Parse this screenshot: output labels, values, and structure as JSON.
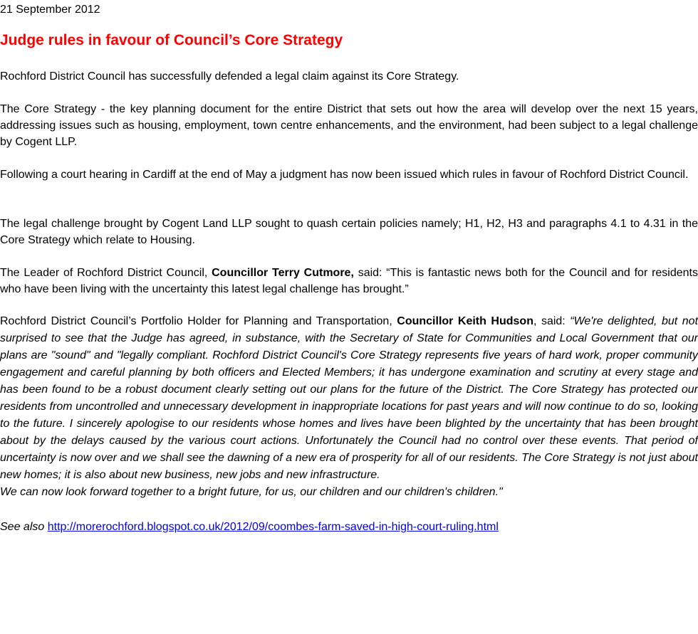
{
  "article": {
    "date": "21 September 2012",
    "headline": "Judge rules in favour of Council’s Core Strategy",
    "p1": "Rochford District Council has successfully defended a legal claim against its Core Strategy.",
    "p2": "The Core Strategy - the key planning document for the entire District that sets out how the area will develop over the next 15 years, addressing issues such as housing, employment, town centre enhancements, and the environment, had been subject to a legal challenge by Cogent LLP.",
    "p3": "Following a court hearing in Cardiff at the end of May a judgment has now been issued which rules in favour of Rochford District Council.",
    "p4": "The legal challenge brought by Cogent Land LLP sought to quash certain policies namely; H1, H2, H3 and paragraphs 4.1 to 4.31 in the Core Strategy which relate to Housing.",
    "p5_pre": "The Leader of Rochford District Council, ",
    "p5_name": "Councillor Terry Cutmore,",
    "p5_post": " said: “This is fantastic news both for the Council and for residents who have been living with the uncertainty this latest legal challenge has brought.”",
    "p6_pre": "Rochford District Council’s Portfolio Holder for Planning and Transportation, ",
    "p6_name": "Councillor Keith Hudson",
    "p6_said": ", said: ",
    "p6_quote": "“We're delighted, but not surprised to see that the Judge has agreed, in substance, with the Secretary of State for Communities and Local Government that our plans are \"sound\" and \"legally compliant. Rochford District Council's Core Strategy represents five years of hard work, proper community engagement and careful planning by both officers and Elected Members; it has undergone examination and scrutiny at every stage and has been found to be a robust document clearly setting out our plans for the future of the District. The Core Strategy has protected our residents from uncontrolled and unnecessary development in inappropriate locations for past years and will now continue to do so, looking to the future.  I sincerely apologise to our residents whose homes and lives have been blighted by the uncertainty that has been brought about by the delays caused by the various court actions. Unfortunately the Council had no control over these events. That period of uncertainty is now over and we shall see the dawning of a new era of prosperity for all of our residents. The Core Strategy is not just about new homes; it is also about new business, new jobs and new infrastructure.",
    "p6_quote_end": "We can now look forward together to a bright future, for us, our children and our children's children.\"",
    "see_also_label": "See also",
    "see_also_link": "http://morerochford.blogspot.co.uk/2012/09/coombes-farm-saved-in-high-court-ruling.html"
  }
}
